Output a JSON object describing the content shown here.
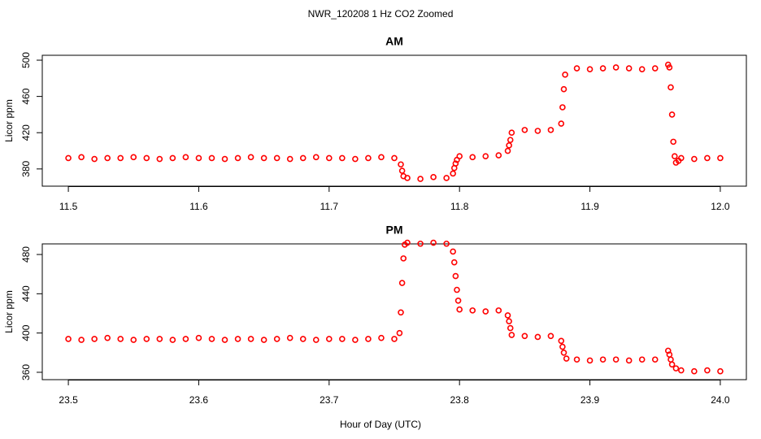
{
  "title": "NWR_120208  1 Hz CO2 Zoomed",
  "x_label": "Hour of Day (UTC)",
  "chart_data": [
    {
      "type": "scatter",
      "title": "AM",
      "y_label": "Licor ppm",
      "color": "#ff0000",
      "x": [
        11.5,
        11.51,
        11.52,
        11.53,
        11.54,
        11.55,
        11.56,
        11.57,
        11.58,
        11.59,
        11.6,
        11.61,
        11.62,
        11.63,
        11.64,
        11.65,
        11.66,
        11.67,
        11.68,
        11.69,
        11.7,
        11.71,
        11.72,
        11.73,
        11.74,
        11.75,
        11.755,
        11.756,
        11.757,
        11.76,
        11.77,
        11.78,
        11.79,
        11.795,
        11.796,
        11.797,
        11.798,
        11.8,
        11.81,
        11.82,
        11.83,
        11.837,
        11.838,
        11.839,
        11.84,
        11.85,
        11.86,
        11.87,
        11.878,
        11.879,
        11.88,
        11.881,
        11.89,
        11.9,
        11.91,
        11.92,
        11.93,
        11.94,
        11.95,
        11.96,
        11.961,
        11.962,
        11.963,
        11.964,
        11.965,
        11.966,
        11.968,
        11.97,
        11.98,
        11.99,
        12.0
      ],
      "y": [
        392,
        393,
        391,
        392,
        392,
        393,
        392,
        391,
        392,
        393,
        392,
        392,
        391,
        392,
        393,
        392,
        392,
        391,
        392,
        393,
        392,
        392,
        391,
        392,
        393,
        392,
        385,
        378,
        372,
        370,
        369,
        371,
        370,
        375,
        381,
        386,
        390,
        394,
        393,
        394,
        395,
        400,
        406,
        412,
        420,
        423,
        422,
        423,
        430,
        448,
        468,
        484,
        491,
        490,
        491,
        492,
        491,
        490,
        491,
        495,
        492,
        470,
        440,
        410,
        394,
        387,
        389,
        392,
        391,
        392,
        392
      ],
      "xlim": [
        11.48,
        12.02
      ],
      "ylim": [
        361,
        505.4
      ],
      "xticks": [
        11.5,
        11.6,
        11.7,
        11.8,
        11.9,
        {
          "value": 12,
          "label": "12.0"
        }
      ],
      "yticks": [
        380,
        420,
        460,
        500
      ]
    },
    {
      "type": "scatter",
      "title": "PM",
      "y_label": "Licor ppm",
      "color": "#ff0000",
      "x": [
        23.5,
        23.51,
        23.52,
        23.53,
        23.54,
        23.55,
        23.56,
        23.57,
        23.58,
        23.59,
        23.6,
        23.61,
        23.62,
        23.63,
        23.64,
        23.65,
        23.66,
        23.67,
        23.68,
        23.69,
        23.7,
        23.71,
        23.72,
        23.73,
        23.74,
        23.75,
        23.754,
        23.755,
        23.756,
        23.757,
        23.758,
        23.76,
        23.77,
        23.78,
        23.79,
        23.795,
        23.796,
        23.797,
        23.798,
        23.799,
        23.8,
        23.81,
        23.82,
        23.83,
        23.837,
        23.838,
        23.839,
        23.84,
        23.85,
        23.86,
        23.87,
        23.878,
        23.879,
        23.88,
        23.882,
        23.89,
        23.9,
        23.91,
        23.92,
        23.93,
        23.94,
        23.95,
        23.96,
        23.961,
        23.962,
        23.963,
        23.966,
        23.97,
        23.98,
        23.99,
        24.0
      ],
      "y": [
        394,
        393,
        394,
        395,
        394,
        393,
        394,
        394,
        393,
        394,
        395,
        394,
        393,
        394,
        394,
        393,
        394,
        395,
        394,
        393,
        394,
        394,
        393,
        394,
        395,
        394,
        400,
        421,
        451,
        476,
        490,
        492,
        491,
        492,
        491,
        483,
        472,
        458,
        444,
        433,
        424,
        423,
        422,
        423,
        418,
        412,
        405,
        398,
        397,
        396,
        397,
        392,
        386,
        380,
        374,
        373,
        372,
        373,
        373,
        372,
        373,
        373,
        382,
        378,
        373,
        368,
        364,
        362,
        361,
        362,
        361
      ],
      "xlim": [
        23.48,
        24.02
      ],
      "ylim": [
        352.5,
        490.8
      ],
      "xticks": [
        23.5,
        23.6,
        23.7,
        23.8,
        23.9,
        {
          "value": 24,
          "label": "24.0"
        }
      ],
      "yticks": [
        360,
        400,
        440,
        480
      ]
    }
  ]
}
